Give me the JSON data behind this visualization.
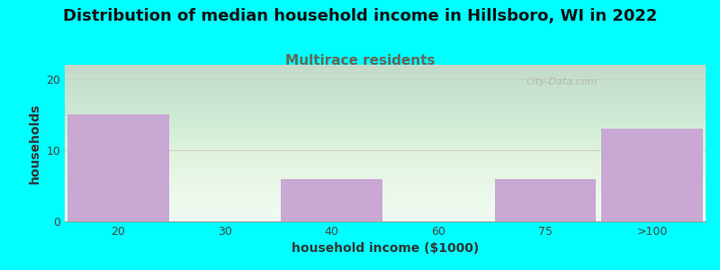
{
  "title": "Distribution of median household income in Hillsboro, WI in 2022",
  "subtitle": "Multirace residents",
  "xlabel": "household income ($1000)",
  "ylabel": "households",
  "bar_categories": [
    "20",
    "30",
    "40",
    "60",
    "75",
    ">100"
  ],
  "bar_values": [
    15,
    0,
    6,
    0,
    6,
    13
  ],
  "bar_color": "#c9a8d4",
  "background_color": "#00ffff",
  "yticks": [
    0,
    10,
    20
  ],
  "ylim": [
    0,
    22
  ],
  "watermark": "City-Data.com",
  "title_fontsize": 13,
  "subtitle_fontsize": 11,
  "subtitle_color": "#666655",
  "axis_label_fontsize": 10,
  "tick_fontsize": 9,
  "grid_color": "#cccccc",
  "title_color": "#111111"
}
